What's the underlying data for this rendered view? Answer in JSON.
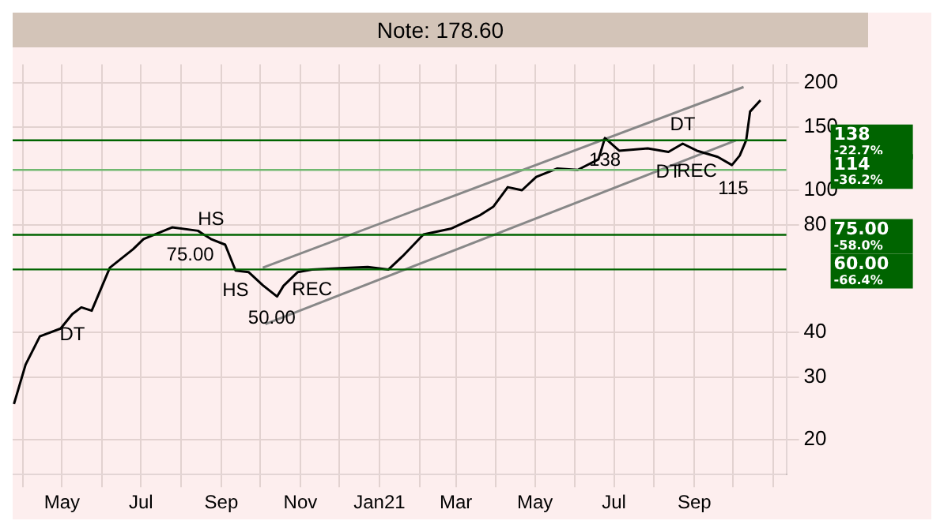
{
  "chart_data": {
    "type": "line",
    "title": "Note: 178.60",
    "x": [
      "2020-03-25",
      "2020-04-03",
      "2020-04-14",
      "2020-04-30",
      "2020-05-09",
      "2020-05-16",
      "2020-05-24",
      "2020-06-07",
      "2020-06-25",
      "2020-07-03",
      "2020-07-25",
      "2020-08-14",
      "2020-08-24",
      "2020-09-04",
      "2020-09-12",
      "2020-09-22",
      "2020-10-03",
      "2020-10-14",
      "2020-10-19",
      "2020-10-30",
      "2020-11-10",
      "2020-12-02",
      "2020-12-23",
      "2021-01-08",
      "2021-01-19",
      "2021-02-04",
      "2021-02-25",
      "2021-03-19",
      "2021-03-30",
      "2021-04-10",
      "2021-04-21",
      "2021-05-02",
      "2021-05-18",
      "2021-06-03",
      "2021-06-19",
      "2021-06-24",
      "2021-07-05",
      "2021-07-27",
      "2021-08-12",
      "2021-08-23",
      "2021-09-03",
      "2021-09-19",
      "2021-09-30",
      "2021-10-06",
      "2021-10-11",
      "2021-10-14",
      "2021-10-22"
    ],
    "series": [
      {
        "color": "#000000",
        "values": [
          25.2,
          32.5,
          39,
          41,
          45,
          47,
          46,
          60.7,
          68.4,
          73,
          78.7,
          77,
          73,
          70.4,
          59.6,
          59,
          54.2,
          50.4,
          54,
          59,
          60,
          60.5,
          61,
          60,
          65.4,
          75.2,
          78,
          84.9,
          90,
          102,
          100,
          109,
          115,
          114,
          122,
          140,
          129,
          131,
          128,
          135,
          129,
          124,
          117.6,
          125,
          138,
          166,
          178.6
        ]
      },
      {
        "type": "line",
        "color": "#888888",
        "x": [
          "2020-10-03",
          "2021-10-09"
        ],
        "values": [
          60.7,
          194.5
        ]
      },
      {
        "type": "line",
        "color": "#888888",
        "x": [
          "2020-10-05",
          "2021-10-03"
        ],
        "values": [
          42.2,
          137.8
        ]
      }
    ],
    "xlim": [
      "2020-03-24",
      "2021-11-11"
    ],
    "xticks": [
      {
        "value": "2020-04-01",
        "label": null
      },
      {
        "value": "2020-05-01",
        "label": "May"
      },
      {
        "value": "2020-06-01",
        "label": null
      },
      {
        "value": "2020-07-01",
        "label": "Jul"
      },
      {
        "value": "2020-08-01",
        "label": null
      },
      {
        "value": "2020-09-01",
        "label": "Sep"
      },
      {
        "value": "2020-10-01",
        "label": null
      },
      {
        "value": "2020-11-01",
        "label": "Nov"
      },
      {
        "value": "2020-12-01",
        "label": null
      },
      {
        "value": "2021-01-01",
        "label": "Jan21"
      },
      {
        "value": "2021-02-01",
        "label": null
      },
      {
        "value": "2021-03-01",
        "label": "Mar"
      },
      {
        "value": "2021-04-01",
        "label": null
      },
      {
        "value": "2021-05-01",
        "label": "May"
      },
      {
        "value": "2021-06-01",
        "label": null
      },
      {
        "value": "2021-07-01",
        "label": "Jul"
      },
      {
        "value": "2021-08-01",
        "label": null
      },
      {
        "value": "2021-09-01",
        "label": "Sep"
      },
      {
        "value": "2021-10-01",
        "label": null
      },
      {
        "value": "2021-11-01",
        "label": null
      }
    ],
    "ylim": [
      16,
      225
    ],
    "yticks": [
      20,
      30,
      40,
      80,
      100,
      150,
      200
    ],
    "log": true,
    "grid": true,
    "legend": false,
    "marker": "none",
    "ref_lines": [
      {
        "axis": "y",
        "value": 138,
        "label": "138 -22.7%",
        "color": "#006400"
      },
      {
        "axis": "y",
        "value": 114,
        "label": "114 -36.2%",
        "color": "#70b870"
      },
      {
        "axis": "y",
        "value": 75,
        "label": "75.00 -58.0%",
        "color": "#006400"
      },
      {
        "axis": "y",
        "value": 60,
        "label": "60.00 -66.4%",
        "color": "#006400"
      }
    ],
    "annotations": [
      {
        "text": "75.00",
        "x": "2020-08-08",
        "y": 75
      },
      {
        "text": "50.00",
        "x": "2020-10-10",
        "y": 50
      },
      {
        "text": "138",
        "x": "2021-06-24",
        "y": 138
      },
      {
        "text": "115",
        "x": "2021-10-01",
        "y": 115
      },
      {
        "text": "DT",
        "x": "2020-05-09",
        "y": 45
      },
      {
        "text": "HS",
        "x": "2020-08-24",
        "y": 73
      },
      {
        "text": "HS",
        "x": "2020-09-12",
        "y": 59.6
      },
      {
        "text": "REC",
        "x": "2020-11-10",
        "y": 60
      },
      {
        "text": "DT",
        "x": "2021-08-12",
        "y": 128
      },
      {
        "text": "DT",
        "x": "2021-08-23",
        "y": 135
      },
      {
        "text": "REC",
        "x": "2021-09-03",
        "y": 129
      }
    ]
  }
}
